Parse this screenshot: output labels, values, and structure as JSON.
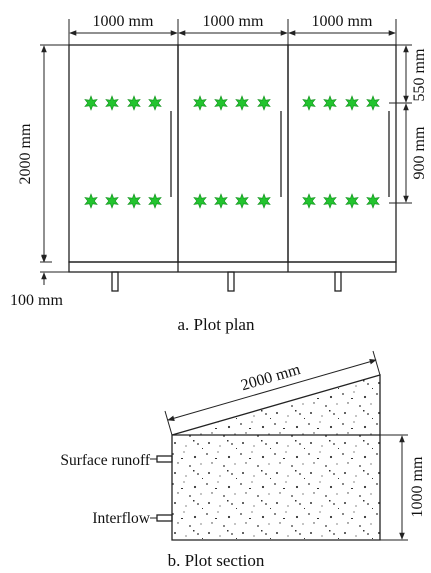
{
  "plan": {
    "caption": "a. Plot plan",
    "width_labels": [
      "1000 mm",
      "1000 mm",
      "1000 mm"
    ],
    "height_label": "2000 mm",
    "border_label": "100 mm",
    "top_gap_label": "550 mm",
    "row_gap_label": "900 mm",
    "plant_icon": "green-star-plant-icon",
    "plant_color": "#22c42e"
  },
  "section": {
    "caption": "b. Plot section",
    "slope_length_label": "2000 mm",
    "depth_label": "1000 mm",
    "outlets": [
      "Surface runoff",
      "Interflow"
    ]
  }
}
